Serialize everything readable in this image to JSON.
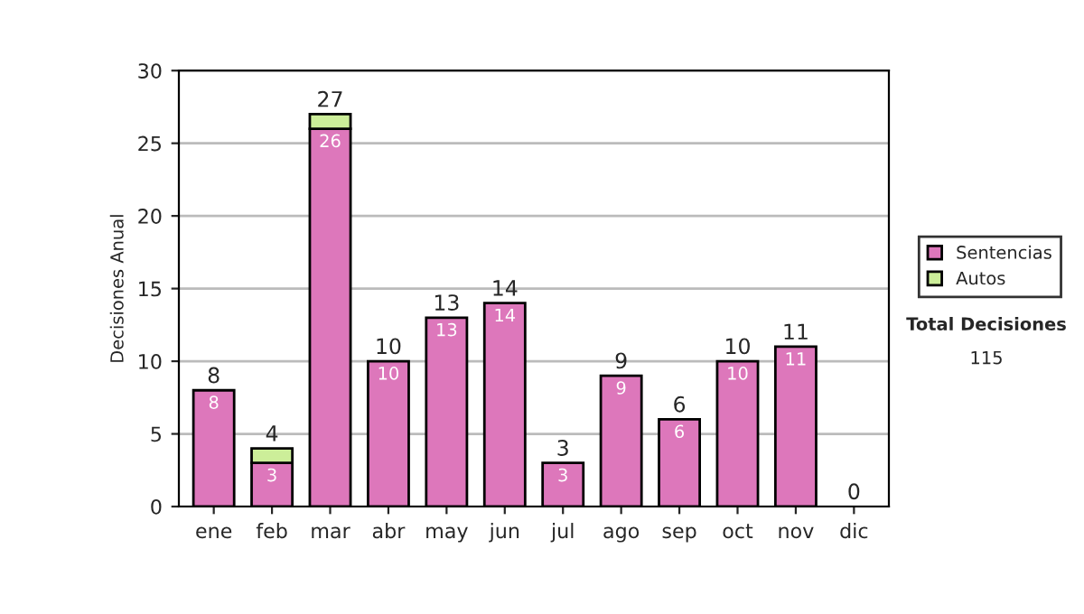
{
  "chart_data": {
    "type": "bar",
    "ylabel": "Decisiones Anual",
    "stacked": true,
    "categories": [
      "ene",
      "feb",
      "mar",
      "abr",
      "may",
      "jun",
      "jul",
      "ago",
      "sep",
      "oct",
      "nov",
      "dic"
    ],
    "series": [
      {
        "name": "Sentencias",
        "color": "#dd77bb",
        "values": [
          8,
          3,
          26,
          10,
          13,
          14,
          3,
          9,
          6,
          10,
          11,
          0
        ],
        "value_labels": [
          "8",
          "3",
          "26",
          "10",
          "13",
          "14",
          "3",
          "9",
          "6",
          "10",
          "11",
          null
        ]
      },
      {
        "name": "Autos",
        "color": "#ccee99",
        "values": [
          0,
          1,
          1,
          0,
          0,
          0,
          0,
          0,
          0,
          0,
          0,
          0
        ]
      }
    ],
    "totals": [
      "8",
      "4",
      "27",
      "10",
      "13",
      "14",
      "3",
      "9",
      "6",
      "10",
      "11",
      "0"
    ],
    "ylim": [
      0,
      30
    ],
    "yticks": [
      0,
      5,
      10,
      15,
      20,
      25,
      30
    ],
    "grid": "y",
    "legend": "right",
    "annotations": [
      "Total Decisiones",
      "115"
    ]
  }
}
